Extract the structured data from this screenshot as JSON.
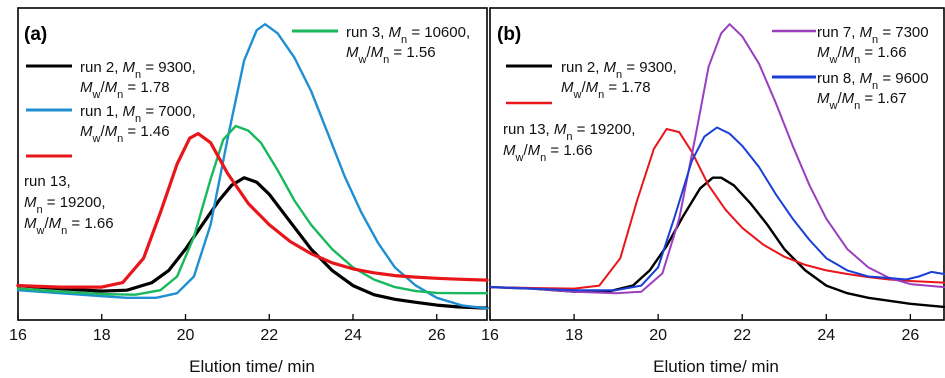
{
  "chart_data": [
    {
      "type": "line",
      "panel": "(a)",
      "xlabel": "Elution time/ min",
      "ylabel": "",
      "xlim": [
        16,
        27.2
      ],
      "ylim": [
        0,
        1
      ],
      "x_ticks": [
        16,
        18,
        20,
        22,
        24,
        26
      ],
      "grid": false,
      "series": [
        {
          "legend": [
            "run 2, ",
            "M",
            "n",
            " = 9300,",
            "M",
            "w",
            "/",
            "M",
            "n",
            " = 1.78"
          ],
          "color": "#000000",
          "width": 3.2,
          "points": [
            [
              16,
              0.1
            ],
            [
              17,
              0.09
            ],
            [
              18,
              0.082
            ],
            [
              18.6,
              0.085
            ],
            [
              19.2,
              0.11
            ],
            [
              19.6,
              0.15
            ],
            [
              20,
              0.22
            ],
            [
              20.4,
              0.3
            ],
            [
              20.8,
              0.38
            ],
            [
              21.1,
              0.43
            ],
            [
              21.4,
              0.455
            ],
            [
              21.7,
              0.44
            ],
            [
              22,
              0.4
            ],
            [
              22.5,
              0.31
            ],
            [
              23,
              0.22
            ],
            [
              23.5,
              0.15
            ],
            [
              24,
              0.1
            ],
            [
              24.5,
              0.07
            ],
            [
              25,
              0.055
            ],
            [
              25.5,
              0.045
            ],
            [
              26,
              0.036
            ],
            [
              26.5,
              0.03
            ],
            [
              27.2,
              0.026
            ]
          ]
        },
        {
          "legend": [
            "run 1, ",
            "M",
            "n",
            " = 7000,",
            "M",
            "w",
            "/",
            "M",
            "n",
            " = 1.46"
          ],
          "color": "#1f8fd1",
          "width": 2.4,
          "points": [
            [
              16,
              0.085
            ],
            [
              17,
              0.075
            ],
            [
              18,
              0.065
            ],
            [
              18.6,
              0.06
            ],
            [
              19.3,
              0.06
            ],
            [
              19.8,
              0.075
            ],
            [
              20.2,
              0.13
            ],
            [
              20.6,
              0.3
            ],
            [
              21,
              0.58
            ],
            [
              21.4,
              0.84
            ],
            [
              21.7,
              0.94
            ],
            [
              21.9,
              0.96
            ],
            [
              22.2,
              0.93
            ],
            [
              22.6,
              0.85
            ],
            [
              23,
              0.74
            ],
            [
              23.4,
              0.6
            ],
            [
              23.8,
              0.46
            ],
            [
              24.2,
              0.34
            ],
            [
              24.6,
              0.24
            ],
            [
              25,
              0.16
            ],
            [
              25.5,
              0.1
            ],
            [
              26,
              0.06
            ],
            [
              26.6,
              0.035
            ],
            [
              27.2,
              0.025
            ]
          ]
        },
        {
          "legend": [
            "run 3, ",
            "M",
            "n",
            " = 10600,",
            "M",
            "w",
            "/",
            "M",
            "n",
            " = 1.56"
          ],
          "color": "#19b85c",
          "width": 2.4,
          "points": [
            [
              16,
              0.09
            ],
            [
              17,
              0.08
            ],
            [
              18,
              0.072
            ],
            [
              18.8,
              0.07
            ],
            [
              19.4,
              0.085
            ],
            [
              19.8,
              0.13
            ],
            [
              20.2,
              0.26
            ],
            [
              20.6,
              0.45
            ],
            [
              20.9,
              0.58
            ],
            [
              21.2,
              0.625
            ],
            [
              21.5,
              0.61
            ],
            [
              21.8,
              0.57
            ],
            [
              22.2,
              0.48
            ],
            [
              22.6,
              0.38
            ],
            [
              23,
              0.3
            ],
            [
              23.5,
              0.22
            ],
            [
              24,
              0.16
            ],
            [
              24.5,
              0.12
            ],
            [
              25,
              0.095
            ],
            [
              25.5,
              0.082
            ],
            [
              26,
              0.076
            ],
            [
              26.6,
              0.075
            ],
            [
              27.2,
              0.075
            ]
          ]
        },
        {
          "legend": [
            "run 13,",
            "M",
            "n",
            " = 19200,",
            "M",
            "w",
            "/",
            "M",
            "n",
            " = 1.66"
          ],
          "color": "#e8161b",
          "width": 3.2,
          "points": [
            [
              16,
              0.1
            ],
            [
              17,
              0.095
            ],
            [
              18,
              0.095
            ],
            [
              18.5,
              0.11
            ],
            [
              19,
              0.19
            ],
            [
              19.4,
              0.34
            ],
            [
              19.8,
              0.5
            ],
            [
              20.1,
              0.585
            ],
            [
              20.3,
              0.6
            ],
            [
              20.6,
              0.57
            ],
            [
              21,
              0.47
            ],
            [
              21.5,
              0.37
            ],
            [
              22,
              0.3
            ],
            [
              22.5,
              0.245
            ],
            [
              23,
              0.205
            ],
            [
              23.5,
              0.175
            ],
            [
              24,
              0.155
            ],
            [
              24.5,
              0.142
            ],
            [
              25,
              0.133
            ],
            [
              25.5,
              0.128
            ],
            [
              26,
              0.124
            ],
            [
              26.5,
              0.121
            ],
            [
              27.2,
              0.118
            ]
          ]
        }
      ],
      "annotations": {
        "run2": [
          "run 2, ",
          "M",
          "n",
          " = 9300,",
          "M",
          "w",
          "/",
          "M",
          "n",
          " = 1.78"
        ],
        "run1": [
          "run 1, ",
          "M",
          "n",
          " = 7000,",
          "M",
          "w",
          "/",
          "M",
          "n",
          " = 1.46"
        ],
        "run3": [
          "run 3, ",
          "M",
          "n",
          " = 10600,",
          "M",
          "w",
          "/",
          "M",
          "n",
          " = 1.56"
        ],
        "run13_line1": "run 13,",
        "run13_line2": [
          "M",
          "n",
          " = 19200,"
        ],
        "run13_line3": [
          "M",
          "w",
          "/",
          "M",
          "n",
          " = 1.66"
        ]
      }
    },
    {
      "type": "line",
      "panel": "(b)",
      "xlabel": "Elution time/ min",
      "ylabel": "",
      "xlim": [
        16,
        26.8
      ],
      "ylim": [
        0,
        1
      ],
      "x_ticks": [
        16,
        18,
        20,
        22,
        24,
        26
      ],
      "grid": false,
      "series": [
        {
          "legend": [
            "run 2, ",
            "M",
            "n",
            " = 9300,",
            "M",
            "w",
            "/",
            "M",
            "n",
            " = 1.78"
          ],
          "color": "#000000",
          "width": 2.4,
          "points": [
            [
              16,
              0.095
            ],
            [
              17,
              0.09
            ],
            [
              18,
              0.08
            ],
            [
              18.8,
              0.08
            ],
            [
              19.4,
              0.1
            ],
            [
              19.8,
              0.15
            ],
            [
              20.2,
              0.23
            ],
            [
              20.6,
              0.33
            ],
            [
              21,
              0.42
            ],
            [
              21.3,
              0.455
            ],
            [
              21.5,
              0.455
            ],
            [
              21.8,
              0.43
            ],
            [
              22.2,
              0.37
            ],
            [
              22.6,
              0.3
            ],
            [
              23,
              0.22
            ],
            [
              23.5,
              0.15
            ],
            [
              24,
              0.1
            ],
            [
              24.5,
              0.075
            ],
            [
              25,
              0.06
            ],
            [
              25.5,
              0.05
            ],
            [
              26,
              0.04
            ],
            [
              26.8,
              0.03
            ]
          ]
        },
        {
          "legend": [
            "run 13, ",
            "M",
            "n",
            " = 19200,",
            "M",
            "w",
            "/",
            "M",
            "n",
            " = 1.66"
          ],
          "color": "#e8161b",
          "width": 2.0,
          "points": [
            [
              16,
              0.095
            ],
            [
              17,
              0.092
            ],
            [
              18,
              0.09
            ],
            [
              18.6,
              0.1
            ],
            [
              19.1,
              0.19
            ],
            [
              19.5,
              0.38
            ],
            [
              19.9,
              0.55
            ],
            [
              20.2,
              0.615
            ],
            [
              20.5,
              0.605
            ],
            [
              20.8,
              0.54
            ],
            [
              21.2,
              0.43
            ],
            [
              21.6,
              0.35
            ],
            [
              22,
              0.29
            ],
            [
              22.5,
              0.235
            ],
            [
              23,
              0.195
            ],
            [
              23.5,
              0.168
            ],
            [
              24,
              0.15
            ],
            [
              24.5,
              0.138
            ],
            [
              25,
              0.128
            ],
            [
              25.5,
              0.12
            ],
            [
              26,
              0.115
            ],
            [
              26.8,
              0.11
            ]
          ]
        },
        {
          "legend": [
            "run 7, ",
            "M",
            "n",
            " = 7300",
            "M",
            "w",
            "/",
            "M",
            "n",
            " = 1.66"
          ],
          "color": "#9b3fbe",
          "width": 2.0,
          "points": [
            [
              16,
              0.095
            ],
            [
              17,
              0.09
            ],
            [
              18,
              0.08
            ],
            [
              19,
              0.075
            ],
            [
              19.6,
              0.08
            ],
            [
              20.1,
              0.14
            ],
            [
              20.5,
              0.32
            ],
            [
              20.9,
              0.6
            ],
            [
              21.2,
              0.82
            ],
            [
              21.5,
              0.93
            ],
            [
              21.7,
              0.96
            ],
            [
              22,
              0.92
            ],
            [
              22.4,
              0.83
            ],
            [
              22.8,
              0.7
            ],
            [
              23.2,
              0.56
            ],
            [
              23.6,
              0.43
            ],
            [
              24,
              0.32
            ],
            [
              24.5,
              0.22
            ],
            [
              25,
              0.16
            ],
            [
              25.5,
              0.125
            ],
            [
              26,
              0.105
            ],
            [
              26.8,
              0.095
            ]
          ]
        },
        {
          "legend": [
            "run 8, ",
            "M",
            "n",
            " = 9600",
            "M",
            "w",
            "/",
            "M",
            "n",
            " = 1.67"
          ],
          "color": "#1a3fd6",
          "width": 2.0,
          "points": [
            [
              16,
              0.095
            ],
            [
              17,
              0.09
            ],
            [
              18,
              0.085
            ],
            [
              19,
              0.085
            ],
            [
              19.6,
              0.1
            ],
            [
              20,
              0.16
            ],
            [
              20.4,
              0.33
            ],
            [
              20.8,
              0.51
            ],
            [
              21.1,
              0.59
            ],
            [
              21.4,
              0.62
            ],
            [
              21.7,
              0.6
            ],
            [
              22,
              0.56
            ],
            [
              22.4,
              0.49
            ],
            [
              22.8,
              0.4
            ],
            [
              23.2,
              0.32
            ],
            [
              23.6,
              0.25
            ],
            [
              24,
              0.19
            ],
            [
              24.5,
              0.15
            ],
            [
              25,
              0.13
            ],
            [
              25.5,
              0.125
            ],
            [
              25.9,
              0.12
            ],
            [
              26.2,
              0.13
            ],
            [
              26.5,
              0.145
            ],
            [
              26.8,
              0.138
            ]
          ]
        }
      ],
      "annotations": {
        "run2": [
          "run 2, ",
          "M",
          "n",
          " = 9300,",
          "M",
          "w",
          "/",
          "M",
          "n",
          " = 1.78"
        ],
        "run13_line1": [
          "run 13, ",
          "M",
          "n",
          " = 19200,"
        ],
        "run13_line2": [
          "M",
          "w",
          "/",
          "M",
          "n",
          " = 1.66"
        ],
        "run7": [
          "run 7, ",
          "M",
          "n",
          " = 7300",
          "M",
          "w",
          "/",
          "M",
          "n",
          " = 1.66"
        ],
        "run8": [
          "run 8, ",
          "M",
          "n",
          " = 9600",
          "M",
          "w",
          "/",
          "M",
          "n",
          " = 1.67"
        ]
      }
    }
  ]
}
